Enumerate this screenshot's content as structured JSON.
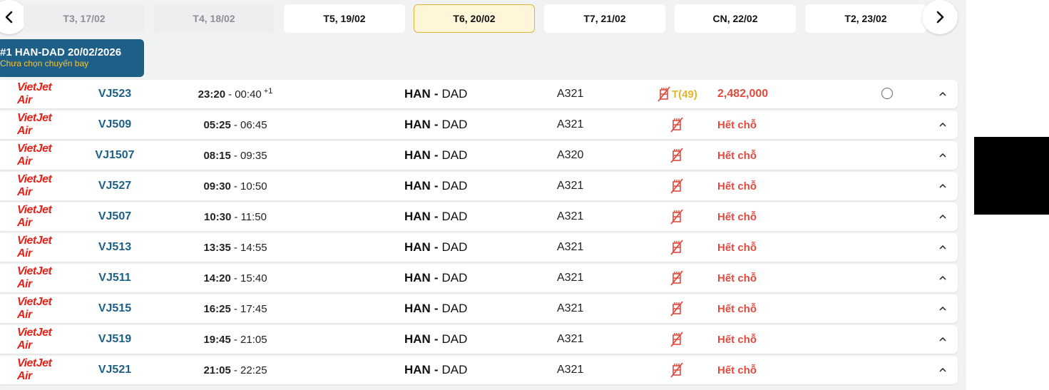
{
  "date_strip": {
    "prev_icon": "chevron-left-icon",
    "next_icon": "chevron-right-icon",
    "dates": [
      {
        "label": "T3, 17/02",
        "state": "disabled"
      },
      {
        "label": "T4, 18/02",
        "state": "disabled"
      },
      {
        "label": "T5, 19/02",
        "state": "normal"
      },
      {
        "label": "T6, 20/02",
        "state": "active"
      },
      {
        "label": "T7, 21/02",
        "state": "normal"
      },
      {
        "label": "CN, 22/02",
        "state": "normal"
      },
      {
        "label": "T2, 23/02",
        "state": "normal"
      }
    ]
  },
  "route_tag": {
    "title": "#1 HAN-DAD 20/02/2026",
    "subtitle": "Chưa chọn chuyến bay"
  },
  "airline_logo_text": "VietJet Air",
  "colors": {
    "accent_blue": "#1d5f86",
    "price_red": "#e04a3f",
    "active_date_bg": "#fff5d8",
    "active_date_border": "#e3b33a",
    "seat_class_yellow": "#e8b32c",
    "brand_red": "#e2231a"
  },
  "flights": [
    {
      "flight_no": "VJ523",
      "depart": "23:20",
      "arrive": "00:40",
      "day_offset": "+1",
      "origin": "HAN",
      "dest": "DAD",
      "aircraft": "A321",
      "seat_class": "T(49)",
      "price": "2,482,000",
      "status": ""
    },
    {
      "flight_no": "VJ509",
      "depart": "05:25",
      "arrive": "06:45",
      "day_offset": "",
      "origin": "HAN",
      "dest": "DAD",
      "aircraft": "A321",
      "seat_class": "",
      "price": "",
      "status": "Hết chỗ"
    },
    {
      "flight_no": "VJ1507",
      "depart": "08:15",
      "arrive": "09:35",
      "day_offset": "",
      "origin": "HAN",
      "dest": "DAD",
      "aircraft": "A320",
      "seat_class": "",
      "price": "",
      "status": "Hết chỗ"
    },
    {
      "flight_no": "VJ527",
      "depart": "09:30",
      "arrive": "10:50",
      "day_offset": "",
      "origin": "HAN",
      "dest": "DAD",
      "aircraft": "A321",
      "seat_class": "",
      "price": "",
      "status": "Hết chỗ"
    },
    {
      "flight_no": "VJ507",
      "depart": "10:30",
      "arrive": "11:50",
      "day_offset": "",
      "origin": "HAN",
      "dest": "DAD",
      "aircraft": "A321",
      "seat_class": "",
      "price": "",
      "status": "Hết chỗ"
    },
    {
      "flight_no": "VJ513",
      "depart": "13:35",
      "arrive": "14:55",
      "day_offset": "",
      "origin": "HAN",
      "dest": "DAD",
      "aircraft": "A321",
      "seat_class": "",
      "price": "",
      "status": "Hết chỗ"
    },
    {
      "flight_no": "VJ511",
      "depart": "14:20",
      "arrive": "15:40",
      "day_offset": "",
      "origin": "HAN",
      "dest": "DAD",
      "aircraft": "A321",
      "seat_class": "",
      "price": "",
      "status": "Hết chỗ"
    },
    {
      "flight_no": "VJ515",
      "depart": "16:25",
      "arrive": "17:45",
      "day_offset": "",
      "origin": "HAN",
      "dest": "DAD",
      "aircraft": "A321",
      "seat_class": "",
      "price": "",
      "status": "Hết chỗ"
    },
    {
      "flight_no": "VJ519",
      "depart": "19:45",
      "arrive": "21:05",
      "day_offset": "",
      "origin": "HAN",
      "dest": "DAD",
      "aircraft": "A321",
      "seat_class": "",
      "price": "",
      "status": "Hết chỗ"
    },
    {
      "flight_no": "VJ521",
      "depart": "21:05",
      "arrive": "22:25",
      "day_offset": "",
      "origin": "HAN",
      "dest": "DAD",
      "aircraft": "A321",
      "seat_class": "",
      "price": "",
      "status": "Hết chỗ"
    }
  ]
}
